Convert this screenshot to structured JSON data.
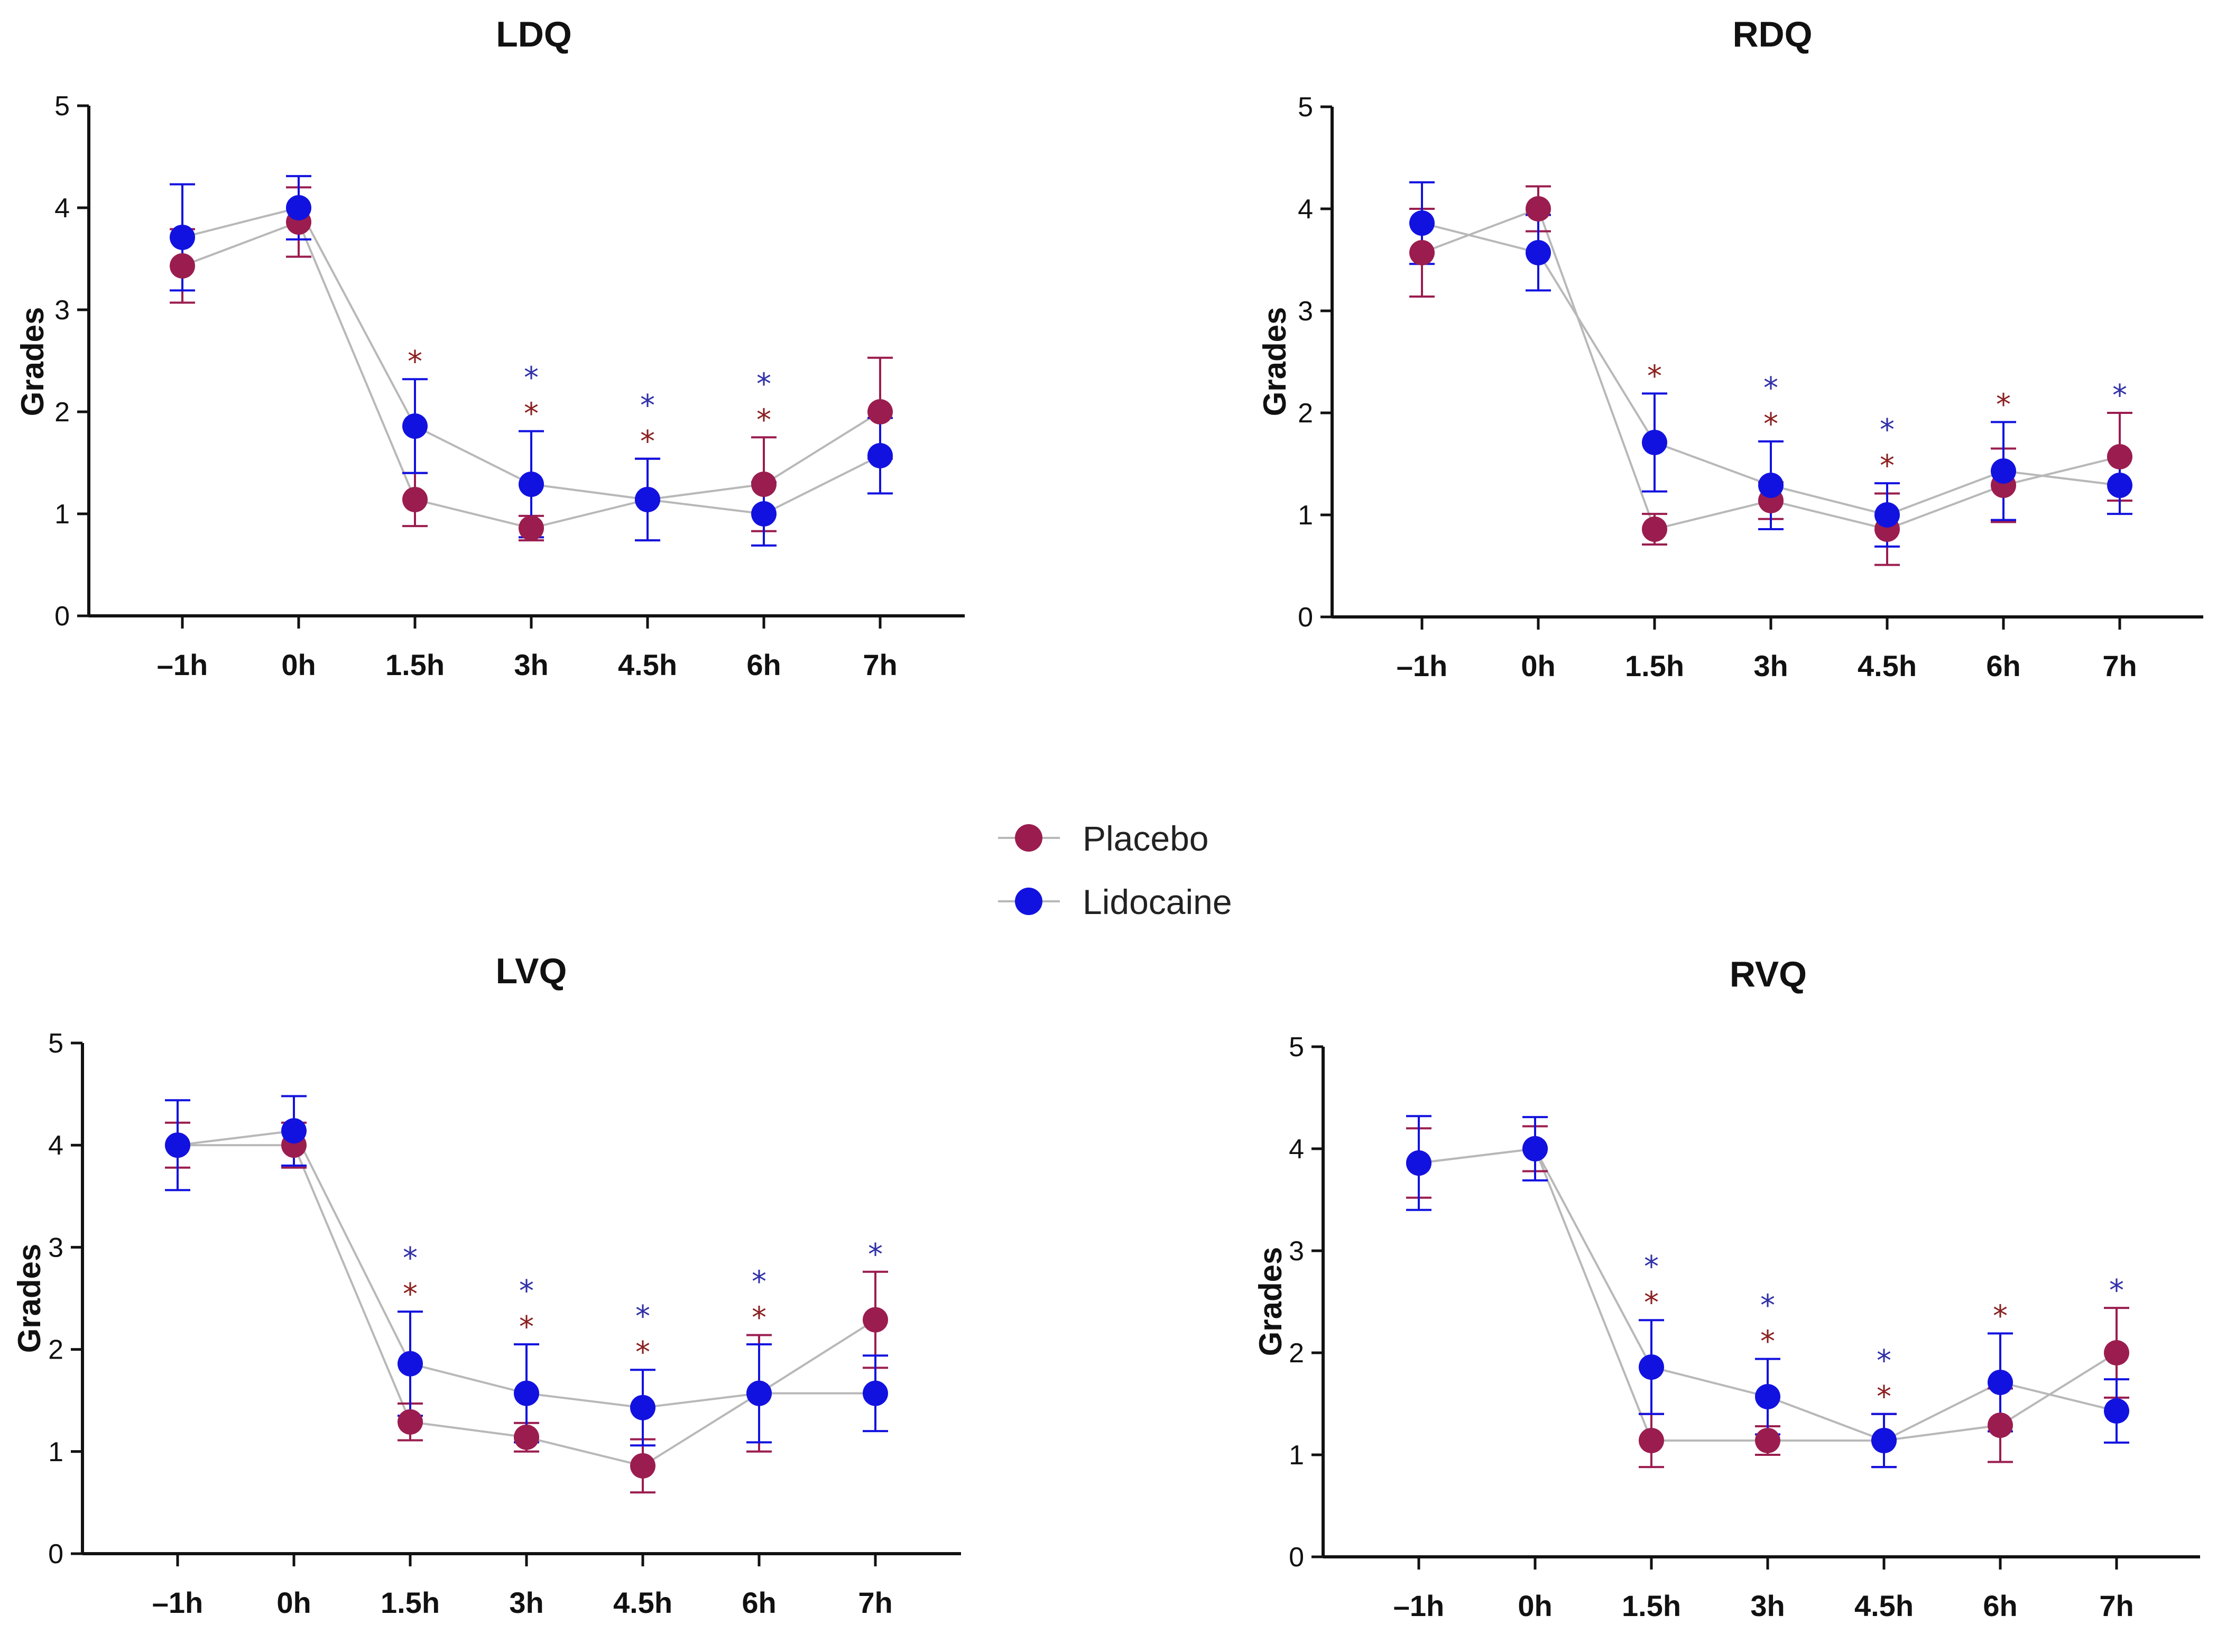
{
  "chart_data": [
    {
      "type": "line",
      "title": "LDQ",
      "xlabel": "",
      "ylabel": "Grades",
      "ylim": [
        0,
        5
      ],
      "yticks": [
        0,
        1,
        2,
        3,
        4,
        5
      ],
      "categories": [
        "–1h",
        "0h",
        "1.5h",
        "3h",
        "4.5h",
        "6h",
        "7h"
      ],
      "series": [
        {
          "name": "Placebo",
          "values": [
            3.43,
            3.86,
            1.14,
            0.86,
            1.14,
            1.29,
            2.0
          ],
          "err_low": [
            0.36,
            0.34,
            0.26,
            0.12,
            0.4,
            0.46,
            0.46
          ],
          "err_high": [
            0.36,
            0.34,
            0.26,
            0.12,
            0.4,
            0.46,
            0.53
          ],
          "significant": [
            false,
            false,
            true,
            true,
            true,
            true,
            false
          ]
        },
        {
          "name": "Lidocaine",
          "values": [
            3.71,
            4.0,
            1.86,
            1.29,
            1.14,
            1.0,
            1.57
          ],
          "err_low": [
            0.52,
            0.31,
            0.46,
            0.52,
            0.4,
            0.31,
            0.37
          ],
          "err_high": [
            0.52,
            0.31,
            0.46,
            0.52,
            0.4,
            0.31,
            0.37
          ],
          "significant": [
            false,
            false,
            false,
            true,
            true,
            true,
            false
          ]
        }
      ]
    },
    {
      "type": "line",
      "title": "RDQ",
      "xlabel": "",
      "ylabel": "Grades",
      "ylim": [
        0,
        5
      ],
      "yticks": [
        0,
        1,
        2,
        3,
        4,
        5
      ],
      "categories": [
        "–1h",
        "0h",
        "1.5h",
        "3h",
        "4.5h",
        "6h",
        "7h"
      ],
      "series": [
        {
          "name": "Placebo",
          "values": [
            3.57,
            4.0,
            0.86,
            1.14,
            0.86,
            1.29,
            1.57
          ],
          "err_low": [
            0.43,
            0.22,
            0.15,
            0.18,
            0.35,
            0.36,
            0.43
          ],
          "err_high": [
            0.43,
            0.22,
            0.15,
            0.18,
            0.35,
            0.36,
            0.43
          ],
          "significant": [
            false,
            false,
            true,
            true,
            true,
            true,
            false
          ]
        },
        {
          "name": "Lidocaine",
          "values": [
            3.86,
            3.57,
            1.71,
            1.29,
            1.0,
            1.43,
            1.29
          ],
          "err_low": [
            0.4,
            0.37,
            0.48,
            0.43,
            0.31,
            0.48,
            0.28
          ],
          "err_high": [
            0.4,
            0.37,
            0.48,
            0.43,
            0.31,
            0.48,
            0.28
          ],
          "significant": [
            false,
            false,
            false,
            true,
            true,
            false,
            true
          ]
        }
      ]
    },
    {
      "type": "line",
      "title": "LVQ",
      "xlabel": "",
      "ylabel": "Grades",
      "ylim": [
        0,
        5
      ],
      "yticks": [
        0,
        1,
        2,
        3,
        4,
        5
      ],
      "categories": [
        "–1h",
        "0h",
        "1.5h",
        "3h",
        "4.5h",
        "6h",
        "7h"
      ],
      "series": [
        {
          "name": "Placebo",
          "values": [
            4.0,
            4.0,
            1.29,
            1.14,
            0.86,
            1.57,
            2.29
          ],
          "err_low": [
            0.22,
            0.22,
            0.18,
            0.14,
            0.26,
            0.57,
            0.47
          ],
          "err_high": [
            0.22,
            0.22,
            0.18,
            0.14,
            0.26,
            0.57,
            0.47
          ],
          "significant": [
            false,
            false,
            true,
            true,
            true,
            true,
            false
          ]
        },
        {
          "name": "Lidocaine",
          "values": [
            4.0,
            4.14,
            1.86,
            1.57,
            1.43,
            1.57,
            1.57
          ],
          "err_low": [
            0.44,
            0.34,
            0.51,
            0.48,
            0.37,
            0.48,
            0.37
          ],
          "err_high": [
            0.44,
            0.34,
            0.51,
            0.48,
            0.37,
            0.48,
            0.37
          ],
          "significant": [
            false,
            false,
            true,
            true,
            true,
            true,
            true
          ]
        }
      ]
    },
    {
      "type": "line",
      "title": "RVQ",
      "xlabel": "",
      "ylabel": "Grades",
      "ylim": [
        0,
        5
      ],
      "yticks": [
        0,
        1,
        2,
        3,
        4,
        5
      ],
      "categories": [
        "–1h",
        "0h",
        "1.5h",
        "3h",
        "4.5h",
        "6h",
        "7h"
      ],
      "series": [
        {
          "name": "Placebo",
          "values": [
            3.86,
            4.0,
            1.14,
            1.14,
            1.14,
            1.29,
            2.0
          ],
          "err_low": [
            0.34,
            0.22,
            0.26,
            0.14,
            0.26,
            0.36,
            0.44
          ],
          "err_high": [
            0.34,
            0.22,
            0.26,
            0.14,
            0.26,
            0.36,
            0.44
          ],
          "significant": [
            false,
            false,
            true,
            true,
            true,
            true,
            false
          ]
        },
        {
          "name": "Lidocaine",
          "values": [
            3.86,
            4.0,
            1.86,
            1.57,
            1.14,
            1.71,
            1.43
          ],
          "err_low": [
            0.46,
            0.31,
            0.46,
            0.37,
            0.26,
            0.48,
            0.31
          ],
          "err_high": [
            0.46,
            0.31,
            0.46,
            0.37,
            0.26,
            0.48,
            0.31
          ],
          "significant": [
            false,
            false,
            true,
            true,
            true,
            false,
            true
          ]
        }
      ]
    }
  ],
  "legend": {
    "position": "center",
    "items": [
      {
        "label": "Placebo",
        "color": "#9b1d4f"
      },
      {
        "label": "Lidocaine",
        "color": "#1212e0"
      }
    ]
  },
  "style": {
    "placebo_color": "#9b1d4f",
    "lidocaine_color": "#1212e0",
    "placebo_star_color": "#8b2020",
    "lidocaine_star_color": "#3030a8",
    "connector_color": "#b8b8b8",
    "axis_color": "#111111"
  },
  "significance_marker": "*"
}
